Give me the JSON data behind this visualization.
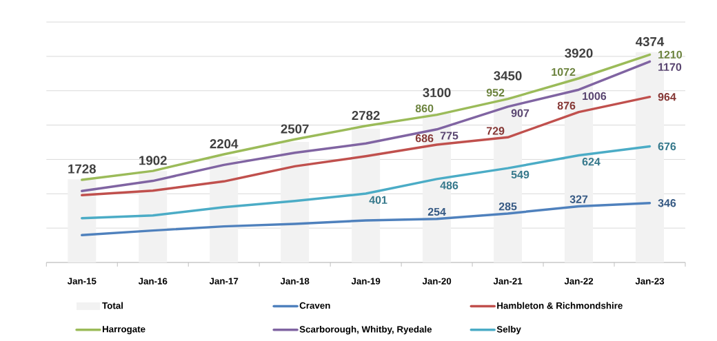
{
  "chart_data": {
    "type": "bar",
    "categories": [
      "Jan-15",
      "Jan-16",
      "Jan-17",
      "Jan-18",
      "Jan-19",
      "Jan-20",
      "Jan-21",
      "Jan-22",
      "Jan-23"
    ],
    "series": [
      {
        "name": "Total",
        "axis": "y2",
        "color": "#f2f2f2",
        "values": [
          1728,
          1902,
          2204,
          2507,
          2782,
          3100,
          3450,
          3920,
          4374
        ],
        "value_labels": [
          "1728",
          "1902",
          "2204",
          "2507",
          "2782",
          "3100",
          "3450",
          "3920",
          "4374"
        ]
      },
      {
        "name": "Craven",
        "type": "line",
        "color": "#4f81bd",
        "values": [
          159,
          186,
          210,
          225,
          245,
          254,
          285,
          327,
          346
        ],
        "value_labels": [
          null,
          null,
          null,
          null,
          null,
          "254",
          "285",
          "327",
          "346"
        ]
      },
      {
        "name": "Hambleton & Richmondshire",
        "type": "line",
        "color": "#c0504d",
        "values": [
          392,
          418,
          472,
          560,
          619,
          686,
          729,
          876,
          964
        ],
        "value_labels": [
          null,
          null,
          null,
          null,
          null,
          "686",
          "729",
          "876",
          "964"
        ]
      },
      {
        "name": "Harrogate",
        "type": "line",
        "color": "#9bbb59",
        "values": [
          481,
          533,
          630,
          717,
          795,
          860,
          952,
          1072,
          1210
        ],
        "value_labels": [
          null,
          null,
          null,
          null,
          null,
          "860",
          "952",
          "1072",
          "1210"
        ]
      },
      {
        "name": "Scarborough, Whitby, Ryedale",
        "type": "line",
        "color": "#8064a2",
        "values": [
          416,
          475,
          568,
          639,
          693,
          775,
          907,
          1006,
          1170
        ],
        "value_labels": [
          null,
          null,
          null,
          null,
          null,
          "775",
          "907",
          "1006",
          "1170"
        ]
      },
      {
        "name": "Selby",
        "type": "line",
        "color": "#4bacc6",
        "values": [
          258,
          274,
          322,
          358,
          401,
          486,
          549,
          624,
          676
        ],
        "value_labels": [
          null,
          null,
          null,
          null,
          "401",
          "486",
          "549",
          "624",
          "676"
        ]
      }
    ],
    "ylim": [
      0,
      1400
    ],
    "yticks": [
      0,
      200,
      400,
      600,
      800,
      1000,
      1200,
      1400
    ],
    "y2lim": [
      0,
      5000
    ],
    "grid": "y",
    "legend": "bottom",
    "tick_labels": "x"
  }
}
